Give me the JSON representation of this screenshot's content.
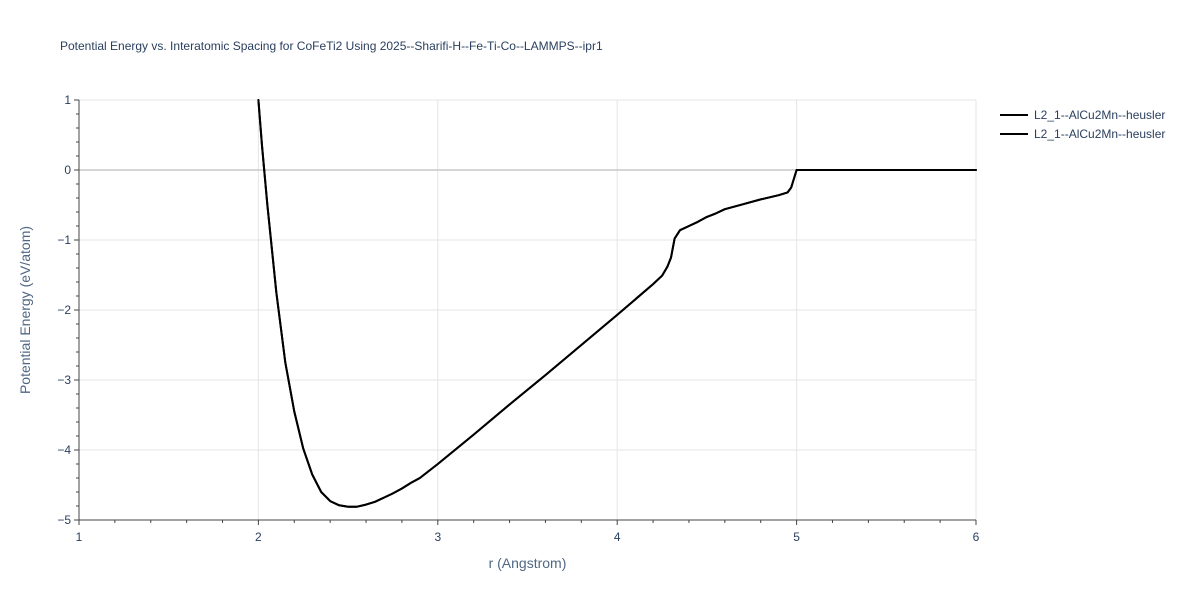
{
  "chart_data": {
    "type": "line",
    "title": "Potential Energy vs. Interatomic Spacing for CoFeTi2 Using 2025--Sharifi-H--Fe-Ti-Co--LAMMPS--ipr1",
    "xlabel": "r (Angstrom)",
    "ylabel": "Potential Energy (eV/atom)",
    "xlim": [
      1,
      6
    ],
    "ylim": [
      -5,
      1
    ],
    "xticks": [
      1,
      2,
      3,
      4,
      5,
      6
    ],
    "xtick_labels": [
      "1",
      "2",
      "3",
      "4",
      "5",
      "6"
    ],
    "yticks": [
      1,
      0,
      -1,
      -2,
      -3,
      -4,
      -5
    ],
    "ytick_labels": [
      "1",
      "0",
      "−1",
      "−2",
      "−3",
      "−4",
      "−5"
    ],
    "grid": true,
    "legend_position": "top-right",
    "series": [
      {
        "name": "L2_1--AlCu2Mn--heusler",
        "color": "#000000",
        "x": [
          2.0,
          2.02,
          2.05,
          2.1,
          2.15,
          2.2,
          2.25,
          2.3,
          2.35,
          2.4,
          2.45,
          2.5,
          2.55,
          2.6,
          2.65,
          2.7,
          2.75,
          2.8,
          2.85,
          2.9,
          3.0,
          3.2,
          3.4,
          3.6,
          3.8,
          4.0,
          4.2,
          4.25,
          4.28,
          4.3,
          4.32,
          4.35,
          4.4,
          4.45,
          4.5,
          4.55,
          4.6,
          4.7,
          4.8,
          4.9,
          4.95,
          4.97,
          5.0,
          5.5,
          6.0
        ],
        "y": [
          1.0,
          0.35,
          -0.5,
          -1.75,
          -2.75,
          -3.45,
          -3.98,
          -4.35,
          -4.6,
          -4.73,
          -4.79,
          -4.81,
          -4.81,
          -4.78,
          -4.74,
          -4.68,
          -4.62,
          -4.55,
          -4.47,
          -4.4,
          -4.2,
          -3.78,
          -3.35,
          -2.93,
          -2.5,
          -2.07,
          -1.63,
          -1.51,
          -1.38,
          -1.25,
          -0.98,
          -0.86,
          -0.8,
          -0.74,
          -0.67,
          -0.62,
          -0.56,
          -0.49,
          -0.42,
          -0.36,
          -0.32,
          -0.25,
          0.0,
          0.0,
          0.0
        ]
      },
      {
        "name": "L2_1--AlCu2Mn--heusler",
        "color": "#000000",
        "x": [
          2.0,
          2.02,
          2.05,
          2.1,
          2.15,
          2.2,
          2.25,
          2.3,
          2.35,
          2.4,
          2.45,
          2.5,
          2.55,
          2.6,
          2.65,
          2.7,
          2.75,
          2.8,
          2.85,
          2.9,
          3.0,
          3.2,
          3.4,
          3.6,
          3.8,
          4.0,
          4.2,
          4.25,
          4.28,
          4.3,
          4.32,
          4.35,
          4.4,
          4.45,
          4.5,
          4.55,
          4.6,
          4.7,
          4.8,
          4.9,
          4.95,
          4.97,
          5.0,
          5.5,
          6.0
        ],
        "y": [
          1.0,
          0.35,
          -0.5,
          -1.75,
          -2.75,
          -3.45,
          -3.98,
          -4.35,
          -4.6,
          -4.73,
          -4.79,
          -4.81,
          -4.81,
          -4.78,
          -4.74,
          -4.68,
          -4.62,
          -4.55,
          -4.47,
          -4.4,
          -4.2,
          -3.78,
          -3.35,
          -2.93,
          -2.5,
          -2.07,
          -1.63,
          -1.51,
          -1.38,
          -1.25,
          -0.98,
          -0.86,
          -0.8,
          -0.74,
          -0.67,
          -0.62,
          -0.56,
          -0.49,
          -0.42,
          -0.36,
          -0.32,
          -0.25,
          0.0,
          0.0,
          0.0
        ]
      }
    ]
  }
}
